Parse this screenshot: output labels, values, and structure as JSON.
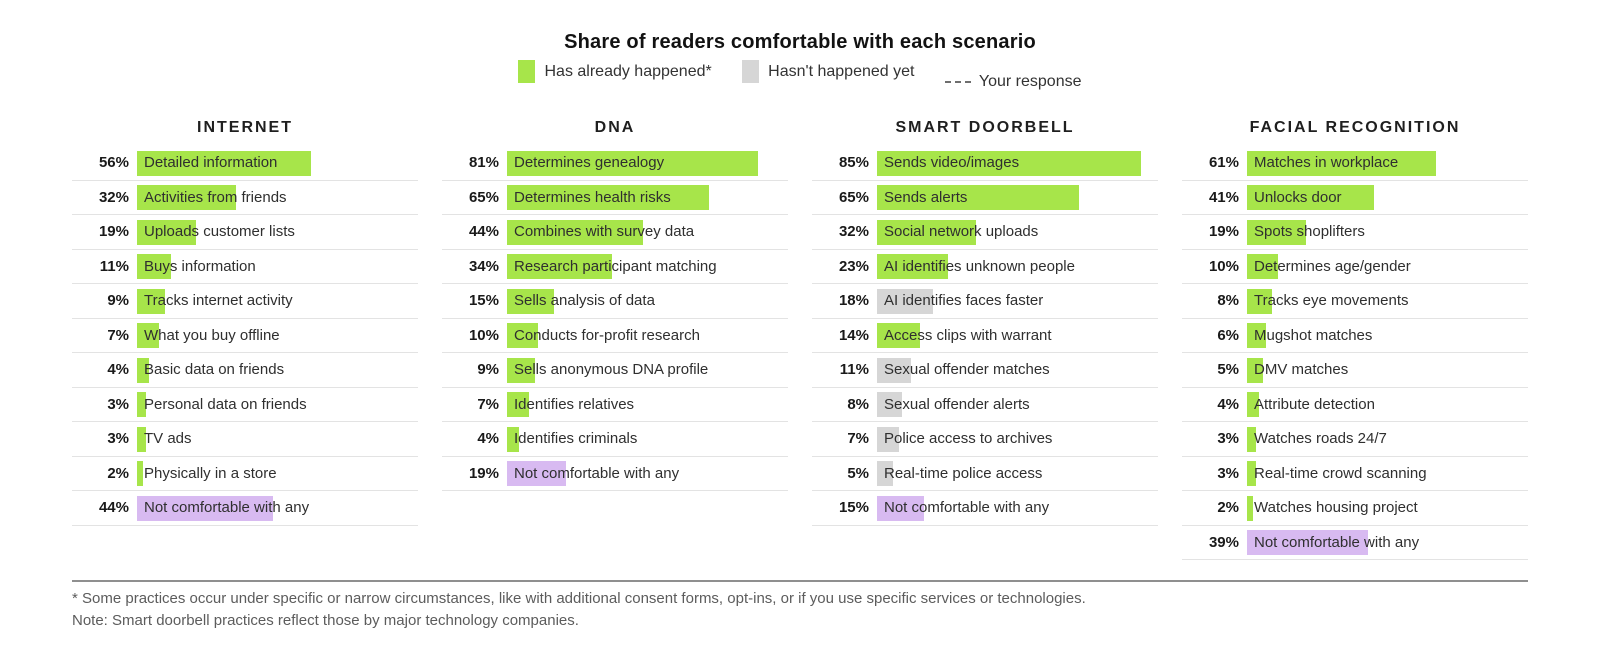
{
  "chart_data": {
    "type": "bar",
    "title": "Share of readers comfortable with each scenario",
    "unit": "%",
    "xlim": [
      0,
      100
    ],
    "legend": [
      {
        "label": "Has already happened*",
        "status": "has_happened"
      },
      {
        "label": "Hasn't happened yet",
        "status": "not_happened"
      },
      {
        "label": "Your response",
        "status": "your_response"
      }
    ],
    "groups": [
      {
        "title": "INTERNET",
        "rows": [
          {
            "pct": "56%",
            "value": 56,
            "label": "Detailed information",
            "status": "has_happened"
          },
          {
            "pct": "32%",
            "value": 32,
            "label": "Activities from friends",
            "status": "has_happened"
          },
          {
            "pct": "19%",
            "value": 19,
            "label": "Uploads customer lists",
            "status": "has_happened"
          },
          {
            "pct": "11%",
            "value": 11,
            "label": "Buys information",
            "status": "has_happened"
          },
          {
            "pct": "9%",
            "value": 9,
            "label": "Tracks internet activity",
            "status": "has_happened"
          },
          {
            "pct": "7%",
            "value": 7,
            "label": "What you buy offline",
            "status": "has_happened"
          },
          {
            "pct": "4%",
            "value": 4,
            "label": "Basic data on friends",
            "status": "has_happened"
          },
          {
            "pct": "3%",
            "value": 3,
            "label": "Personal data on friends",
            "status": "has_happened"
          },
          {
            "pct": "3%",
            "value": 3,
            "label": "TV ads",
            "status": "has_happened"
          },
          {
            "pct": "2%",
            "value": 2,
            "label": "Physically in a store",
            "status": "has_happened"
          },
          {
            "pct": "44%",
            "value": 44,
            "label": "Not comfortable with any",
            "status": "not_comfortable"
          }
        ]
      },
      {
        "title": "DNA",
        "rows": [
          {
            "pct": "81%",
            "value": 81,
            "label": "Determines genealogy",
            "status": "has_happened"
          },
          {
            "pct": "65%",
            "value": 65,
            "label": "Determines health risks",
            "status": "has_happened"
          },
          {
            "pct": "44%",
            "value": 44,
            "label": "Combines with survey data",
            "status": "has_happened"
          },
          {
            "pct": "34%",
            "value": 34,
            "label": "Research participant matching",
            "status": "has_happened"
          },
          {
            "pct": "15%",
            "value": 15,
            "label": "Sells analysis of data",
            "status": "has_happened"
          },
          {
            "pct": "10%",
            "value": 10,
            "label": "Conducts for-profit research",
            "status": "has_happened"
          },
          {
            "pct": "9%",
            "value": 9,
            "label": "Sells anonymous DNA profile",
            "status": "has_happened"
          },
          {
            "pct": "7%",
            "value": 7,
            "label": "Identifies relatives",
            "status": "has_happened"
          },
          {
            "pct": "4%",
            "value": 4,
            "label": "Identifies criminals",
            "status": "has_happened"
          },
          {
            "pct": "19%",
            "value": 19,
            "label": "Not comfortable with any",
            "status": "not_comfortable"
          }
        ]
      },
      {
        "title": "SMART DOORBELL",
        "rows": [
          {
            "pct": "85%",
            "value": 85,
            "label": "Sends video/images",
            "status": "has_happened"
          },
          {
            "pct": "65%",
            "value": 65,
            "label": "Sends alerts",
            "status": "has_happened"
          },
          {
            "pct": "32%",
            "value": 32,
            "label": "Social network uploads",
            "status": "has_happened"
          },
          {
            "pct": "23%",
            "value": 23,
            "label": "AI identifies unknown people",
            "status": "has_happened"
          },
          {
            "pct": "18%",
            "value": 18,
            "label": "AI identifies faces faster",
            "status": "not_happened"
          },
          {
            "pct": "14%",
            "value": 14,
            "label": "Access clips with warrant",
            "status": "has_happened"
          },
          {
            "pct": "11%",
            "value": 11,
            "label": "Sexual offender matches",
            "status": "not_happened"
          },
          {
            "pct": "8%",
            "value": 8,
            "label": "Sexual offender alerts",
            "status": "not_happened"
          },
          {
            "pct": "7%",
            "value": 7,
            "label": "Police access to archives",
            "status": "not_happened"
          },
          {
            "pct": "5%",
            "value": 5,
            "label": "Real-time police access",
            "status": "not_happened"
          },
          {
            "pct": "15%",
            "value": 15,
            "label": "Not comfortable with any",
            "status": "not_comfortable"
          }
        ]
      },
      {
        "title": "FACIAL RECOGNITION",
        "rows": [
          {
            "pct": "61%",
            "value": 61,
            "label": "Matches in workplace",
            "status": "has_happened"
          },
          {
            "pct": "41%",
            "value": 41,
            "label": "Unlocks door",
            "status": "has_happened"
          },
          {
            "pct": "19%",
            "value": 19,
            "label": "Spots shoplifters",
            "status": "has_happened"
          },
          {
            "pct": "10%",
            "value": 10,
            "label": "Determines age/gender",
            "status": "has_happened"
          },
          {
            "pct": "8%",
            "value": 8,
            "label": "Tracks eye movements",
            "status": "has_happened"
          },
          {
            "pct": "6%",
            "value": 6,
            "label": "Mugshot matches",
            "status": "has_happened"
          },
          {
            "pct": "5%",
            "value": 5,
            "label": "DMV matches",
            "status": "has_happened"
          },
          {
            "pct": "4%",
            "value": 4,
            "label": "Attribute detection",
            "status": "has_happened"
          },
          {
            "pct": "3%",
            "value": 3,
            "label": "Watches roads 24/7",
            "status": "has_happened"
          },
          {
            "pct": "3%",
            "value": 3,
            "label": "Real-time crowd scanning",
            "status": "has_happened"
          },
          {
            "pct": "2%",
            "value": 2,
            "label": "Watches housing project",
            "status": "has_happened"
          },
          {
            "pct": "39%",
            "value": 39,
            "label": "Not comfortable with any",
            "status": "not_comfortable"
          }
        ]
      }
    ]
  },
  "colors": {
    "has_happened": "#a7e54a",
    "not_happened": "#d6d6d6",
    "not_comfortable": "#d8baf1"
  },
  "footnotes": [
    "* Some practices occur under specific or narrow circumstances, like with additional consent forms, opt-ins, or if you use specific services or technologies.",
    "Note: Smart doorbell practices reflect those by major technology companies."
  ]
}
